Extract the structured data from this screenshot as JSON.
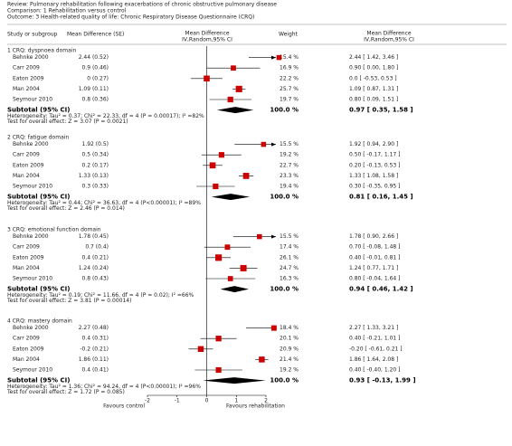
{
  "chart_data": {
    "type": "forest",
    "review": "Review:  Pulmonary rehabilitation following exacerbations of chronic obstructive pulmonary disease",
    "comparison": "Comparison:  1 Rehabilitation versus control",
    "outcome": "Outcome:  3 Health-related quality of life: Chronic Respiratory Disease Questionnaire (CRQ)",
    "headers": {
      "study": "Study or subgroup",
      "md_se": "Mean Difference (SE)",
      "md_plot": [
        "Mean Difference",
        "IV,Random,95% CI"
      ],
      "weight": "Weight",
      "md_text": [
        "Mean Difference",
        "IV,Random,95% CI"
      ]
    },
    "groups": [
      {
        "title": "1 CRQ: dyspnoea domain",
        "studies": [
          {
            "name": "Behnke 2000",
            "md_se": "2.44 (0.52)",
            "weight": 15.4,
            "weight_label": "15.4 %",
            "md": 2.44,
            "lo": 1.42,
            "hi": 3.46,
            "ci_label": "2.44 [ 1.42, 3.46 ]"
          },
          {
            "name": "Carr 2009",
            "md_se": "0.9 (0.46)",
            "weight": 16.9,
            "weight_label": "16.9 %",
            "md": 0.9,
            "lo": 0.0,
            "hi": 1.8,
            "ci_label": "0.90 [ 0.00, 1.80 ]"
          },
          {
            "name": "Eaton 2009",
            "md_se": "0 (0.27)",
            "weight": 22.2,
            "weight_label": "22.2 %",
            "md": 0,
            "lo": -0.53,
            "hi": 0.53,
            "ci_label": "0.0 [ -0.53, 0.53 ]"
          },
          {
            "name": "Man 2004",
            "md_se": "1.09 (0.11)",
            "weight": 25.7,
            "weight_label": "25.7 %",
            "md": 1.09,
            "lo": 0.87,
            "hi": 1.31,
            "ci_label": "1.09 [ 0.87, 1.31 ]"
          },
          {
            "name": "Seymour 2010",
            "md_se": "0.8 (0.36)",
            "weight": 19.7,
            "weight_label": "19.7 %",
            "md": 0.8,
            "lo": 0.09,
            "hi": 1.51,
            "ci_label": "0.80 [ 0.09, 1.51 ]"
          }
        ],
        "subtotal": {
          "label": "Subtotal (95% CI)",
          "weight_label": "100.0 %",
          "md": 0.97,
          "lo": 0.35,
          "hi": 1.58,
          "ci_label": "0.97 [ 0.35, 1.58 ]"
        },
        "heterogeneity": "Heterogeneity: Tau² = 0.37; Chi² = 22.33, df = 4 (P = 0.00017); I² =82%",
        "overall_effect": "Test for overall effect: Z = 3.07 (P = 0.0021)"
      },
      {
        "title": "2 CRQ: fatigue domain",
        "studies": [
          {
            "name": "Behnke 2000",
            "md_se": "1.92 (0.5)",
            "weight": 15.5,
            "weight_label": "15.5 %",
            "md": 1.92,
            "lo": 0.94,
            "hi": 2.9,
            "ci_label": "1.92 [ 0.94, 2.90 ]"
          },
          {
            "name": "Carr 2009",
            "md_se": "0.5 (0.34)",
            "weight": 19.2,
            "weight_label": "19.2 %",
            "md": 0.5,
            "lo": -0.17,
            "hi": 1.17,
            "ci_label": "0.50 [ -0.17, 1.17 ]"
          },
          {
            "name": "Eaton 2009",
            "md_se": "0.2 (0.17)",
            "weight": 22.7,
            "weight_label": "22.7 %",
            "md": 0.2,
            "lo": -0.13,
            "hi": 0.53,
            "ci_label": "0.20 [ -0.13, 0.53 ]"
          },
          {
            "name": "Man 2004",
            "md_se": "1.33 (0.13)",
            "weight": 23.3,
            "weight_label": "23.3 %",
            "md": 1.33,
            "lo": 1.08,
            "hi": 1.58,
            "ci_label": "1.33 [ 1.08, 1.58 ]"
          },
          {
            "name": "Seymour 2010",
            "md_se": "0.3 (0.33)",
            "weight": 19.4,
            "weight_label": "19.4 %",
            "md": 0.3,
            "lo": -0.35,
            "hi": 0.95,
            "ci_label": "0.30 [ -0.35, 0.95 ]"
          }
        ],
        "subtotal": {
          "label": "Subtotal (95% CI)",
          "weight_label": "100.0 %",
          "md": 0.81,
          "lo": 0.16,
          "hi": 1.45,
          "ci_label": "0.81 [ 0.16, 1.45 ]"
        },
        "heterogeneity": "Heterogeneity: Tau² = 0.44; Chi² = 36.63, df = 4 (P<0.00001); I² =89%",
        "overall_effect": "Test for overall effect: Z = 2.46 (P = 0.014)"
      },
      {
        "title": "3 CRQ: emotional function domain",
        "studies": [
          {
            "name": "Behnke 2000",
            "md_se": "1.78 (0.45)",
            "weight": 15.5,
            "weight_label": "15.5 %",
            "md": 1.78,
            "lo": 0.9,
            "hi": 2.66,
            "ci_label": "1.78 [ 0.90, 2.66 ]"
          },
          {
            "name": "Carr 2009",
            "md_se": "0.7 (0.4)",
            "weight": 17.4,
            "weight_label": "17.4 %",
            "md": 0.7,
            "lo": -0.08,
            "hi": 1.48,
            "ci_label": "0.70 [ -0.08, 1.48 ]"
          },
          {
            "name": "Eaton 2009",
            "md_se": "0.4 (0.21)",
            "weight": 26.1,
            "weight_label": "26.1 %",
            "md": 0.4,
            "lo": -0.01,
            "hi": 0.81,
            "ci_label": "0.40 [ -0.01, 0.81 ]"
          },
          {
            "name": "Man 2004",
            "md_se": "1.24 (0.24)",
            "weight": 24.7,
            "weight_label": "24.7 %",
            "md": 1.24,
            "lo": 0.77,
            "hi": 1.71,
            "ci_label": "1.24 [ 0.77, 1.71 ]"
          },
          {
            "name": "Seymour 2010",
            "md_se": "0.8 (0.43)",
            "weight": 16.3,
            "weight_label": "16.3 %",
            "md": 0.8,
            "lo": -0.04,
            "hi": 1.64,
            "ci_label": "0.80 [ -0.04, 1.64 ]"
          }
        ],
        "subtotal": {
          "label": "Subtotal (95% CI)",
          "weight_label": "100.0 %",
          "md": 0.94,
          "lo": 0.46,
          "hi": 1.42,
          "ci_label": "0.94 [ 0.46, 1.42 ]"
        },
        "heterogeneity": "Heterogeneity: Tau² = 0.19; Chi² = 11.66, df = 4 (P = 0.02); I² =66%",
        "overall_effect": "Test for overall effect: Z = 3.81 (P = 0.00014)"
      },
      {
        "title": "4 CRQ: mastery domain",
        "studies": [
          {
            "name": "Behnke 2000",
            "md_se": "2.27 (0.48)",
            "weight": 18.4,
            "weight_label": "18.4 %",
            "md": 2.27,
            "lo": 1.33,
            "hi": 3.21,
            "ci_label": "2.27 [ 1.33, 3.21 ]"
          },
          {
            "name": "Carr 2009",
            "md_se": "0.4 (0.31)",
            "weight": 20.1,
            "weight_label": "20.1 %",
            "md": 0.4,
            "lo": -0.21,
            "hi": 1.01,
            "ci_label": "0.40 [ -0.21, 1.01 ]"
          },
          {
            "name": "Eaton 2009",
            "md_se": "-0.2 (0.21)",
            "weight": 20.9,
            "weight_label": "20.9 %",
            "md": -0.2,
            "lo": -0.61,
            "hi": 0.21,
            "ci_label": "-0.20 [ -0.61, 0.21 ]"
          },
          {
            "name": "Man 2004",
            "md_se": "1.86 (0.11)",
            "weight": 21.4,
            "weight_label": "21.4 %",
            "md": 1.86,
            "lo": 1.64,
            "hi": 2.08,
            "ci_label": "1.86 [ 1.64, 2.08 ]"
          },
          {
            "name": "Seymour 2010",
            "md_se": "0.4 (0.41)",
            "weight": 19.2,
            "weight_label": "19.2 %",
            "md": 0.4,
            "lo": -0.4,
            "hi": 1.2,
            "ci_label": "0.40 [ -0.40, 1.20 ]"
          }
        ],
        "subtotal": {
          "label": "Subtotal (95% CI)",
          "weight_label": "100.0 %",
          "md": 0.93,
          "lo": -0.13,
          "hi": 1.99,
          "ci_label": "0.93 [ -0.13, 1.99 ]"
        },
        "heterogeneity": "Heterogeneity: Tau² = 1.36; Chi² = 94.24, df = 4 (P<0.00001); I² =96%",
        "overall_effect": "Test for overall effect: Z = 1.72 (P = 0.085)"
      }
    ],
    "xlim": [
      -2,
      2
    ],
    "xticks": [
      -2,
      -1,
      0,
      1,
      2
    ],
    "favours_left": "Favours control",
    "favours_right": "Favours rehabilitation",
    "box_color": "#cc0000",
    "diamond_color": "#000000"
  }
}
